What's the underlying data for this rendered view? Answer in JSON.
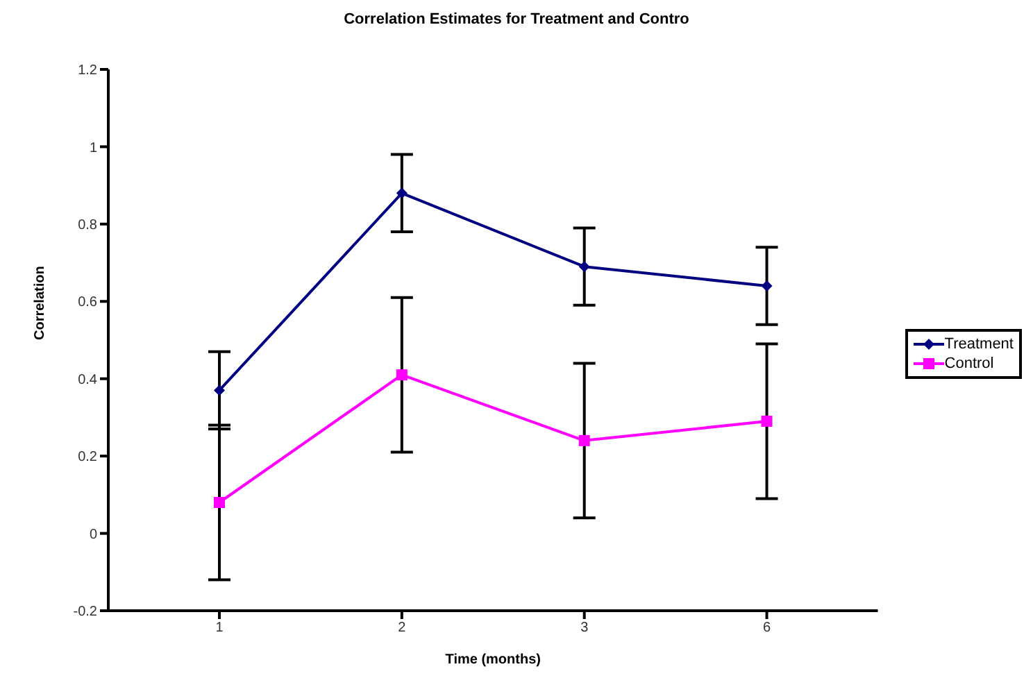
{
  "chart_data": {
    "type": "line",
    "title": "Correlation Estimates for Treatment and Contro",
    "xlabel": "Time (months)",
    "ylabel": "Correlation",
    "categories": [
      "1",
      "2",
      "3",
      "6"
    ],
    "series": [
      {
        "name": "Treatment",
        "color": "#000080",
        "marker": "diamond",
        "values": [
          0.37,
          0.88,
          0.69,
          0.64
        ],
        "errors": [
          0.1,
          0.1,
          0.1,
          0.1
        ]
      },
      {
        "name": "Control",
        "color": "#ff00ff",
        "marker": "square",
        "values": [
          0.08,
          0.41,
          0.24,
          0.29
        ],
        "errors": [
          0.2,
          0.2,
          0.2,
          0.2
        ]
      }
    ],
    "ylim": [
      -0.2,
      1.2
    ],
    "yticks": [
      -0.2,
      0,
      0.2,
      0.4,
      0.6,
      0.8,
      1,
      1.2
    ],
    "grid": false,
    "legend": "right"
  }
}
